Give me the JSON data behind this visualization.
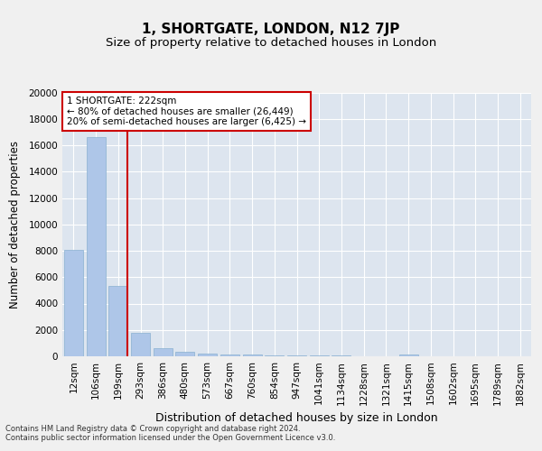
{
  "title1": "1, SHORTGATE, LONDON, N12 7JP",
  "title2": "Size of property relative to detached houses in London",
  "xlabel": "Distribution of detached houses by size in London",
  "ylabel": "Number of detached properties",
  "categories": [
    "12sqm",
    "106sqm",
    "199sqm",
    "293sqm",
    "386sqm",
    "480sqm",
    "573sqm",
    "667sqm",
    "760sqm",
    "854sqm",
    "947sqm",
    "1041sqm",
    "1134sqm",
    "1228sqm",
    "1321sqm",
    "1415sqm",
    "1508sqm",
    "1602sqm",
    "1695sqm",
    "1789sqm",
    "1882sqm"
  ],
  "values": [
    8050,
    16600,
    5300,
    1750,
    600,
    310,
    230,
    170,
    120,
    80,
    60,
    45,
    35,
    25,
    20,
    140,
    0,
    0,
    0,
    0,
    0
  ],
  "bar_color": "#aec6e8",
  "bar_edge_color": "#8ab0d0",
  "vline_x_index": 2,
  "vline_color": "#cc0000",
  "annotation_line1": "1 SHORTGATE: 222sqm",
  "annotation_line2": "← 80% of detached houses are smaller (26,449)",
  "annotation_line3": "20% of semi-detached houses are larger (6,425) →",
  "annotation_box_color": "#ffffff",
  "annotation_border_color": "#cc0000",
  "ylim": [
    0,
    20000
  ],
  "yticks": [
    0,
    2000,
    4000,
    6000,
    8000,
    10000,
    12000,
    14000,
    16000,
    18000,
    20000
  ],
  "background_color": "#dde5ef",
  "grid_color": "#ffffff",
  "footer1": "Contains HM Land Registry data © Crown copyright and database right 2024.",
  "footer2": "Contains public sector information licensed under the Open Government Licence v3.0.",
  "title1_fontsize": 11,
  "title2_fontsize": 9.5,
  "xlabel_fontsize": 9,
  "ylabel_fontsize": 8.5,
  "tick_fontsize": 7.5,
  "footer_fontsize": 6,
  "annotation_fontsize": 7.5
}
